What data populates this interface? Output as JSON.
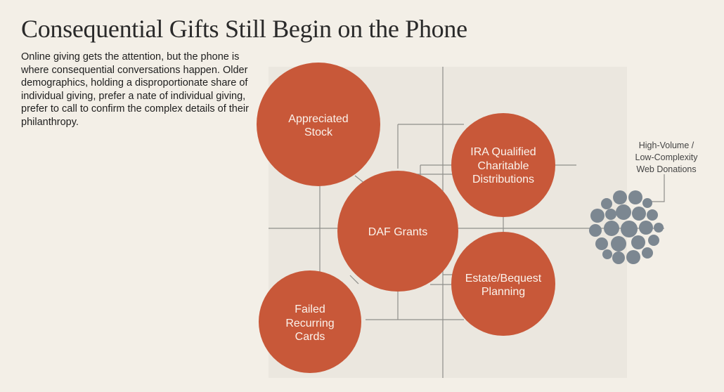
{
  "header": {
    "title": "Consequential Gifts Still Begin on the Phone",
    "intro": "Online giving gets the attention, but the phone is where consequential conversations happen. Older demographics, holding a disproportionate share of individual giving, prefer a nate of individual giving, prefer to call to confirm the complex details of their philanthropy."
  },
  "nodes": {
    "appreciated_stock": [
      "Appreciated",
      "Stock"
    ],
    "ira": [
      "IRA Qualified",
      "Charitable",
      "Distributions"
    ],
    "daf": [
      "DAF Grants"
    ],
    "estate": [
      "Estate/Bequest",
      "Planning"
    ],
    "failed": [
      "Failed",
      "Recurring",
      "Cards"
    ]
  },
  "high_volume_label": [
    "High-Volume /",
    "Low-Complexity",
    "Web Donations"
  ],
  "colors": {
    "node_fill": "#c85839",
    "dot_fill": "#7c8791",
    "line": "#8e8e8a",
    "panel": "#ebe7df",
    "background": "#f3efe7"
  }
}
